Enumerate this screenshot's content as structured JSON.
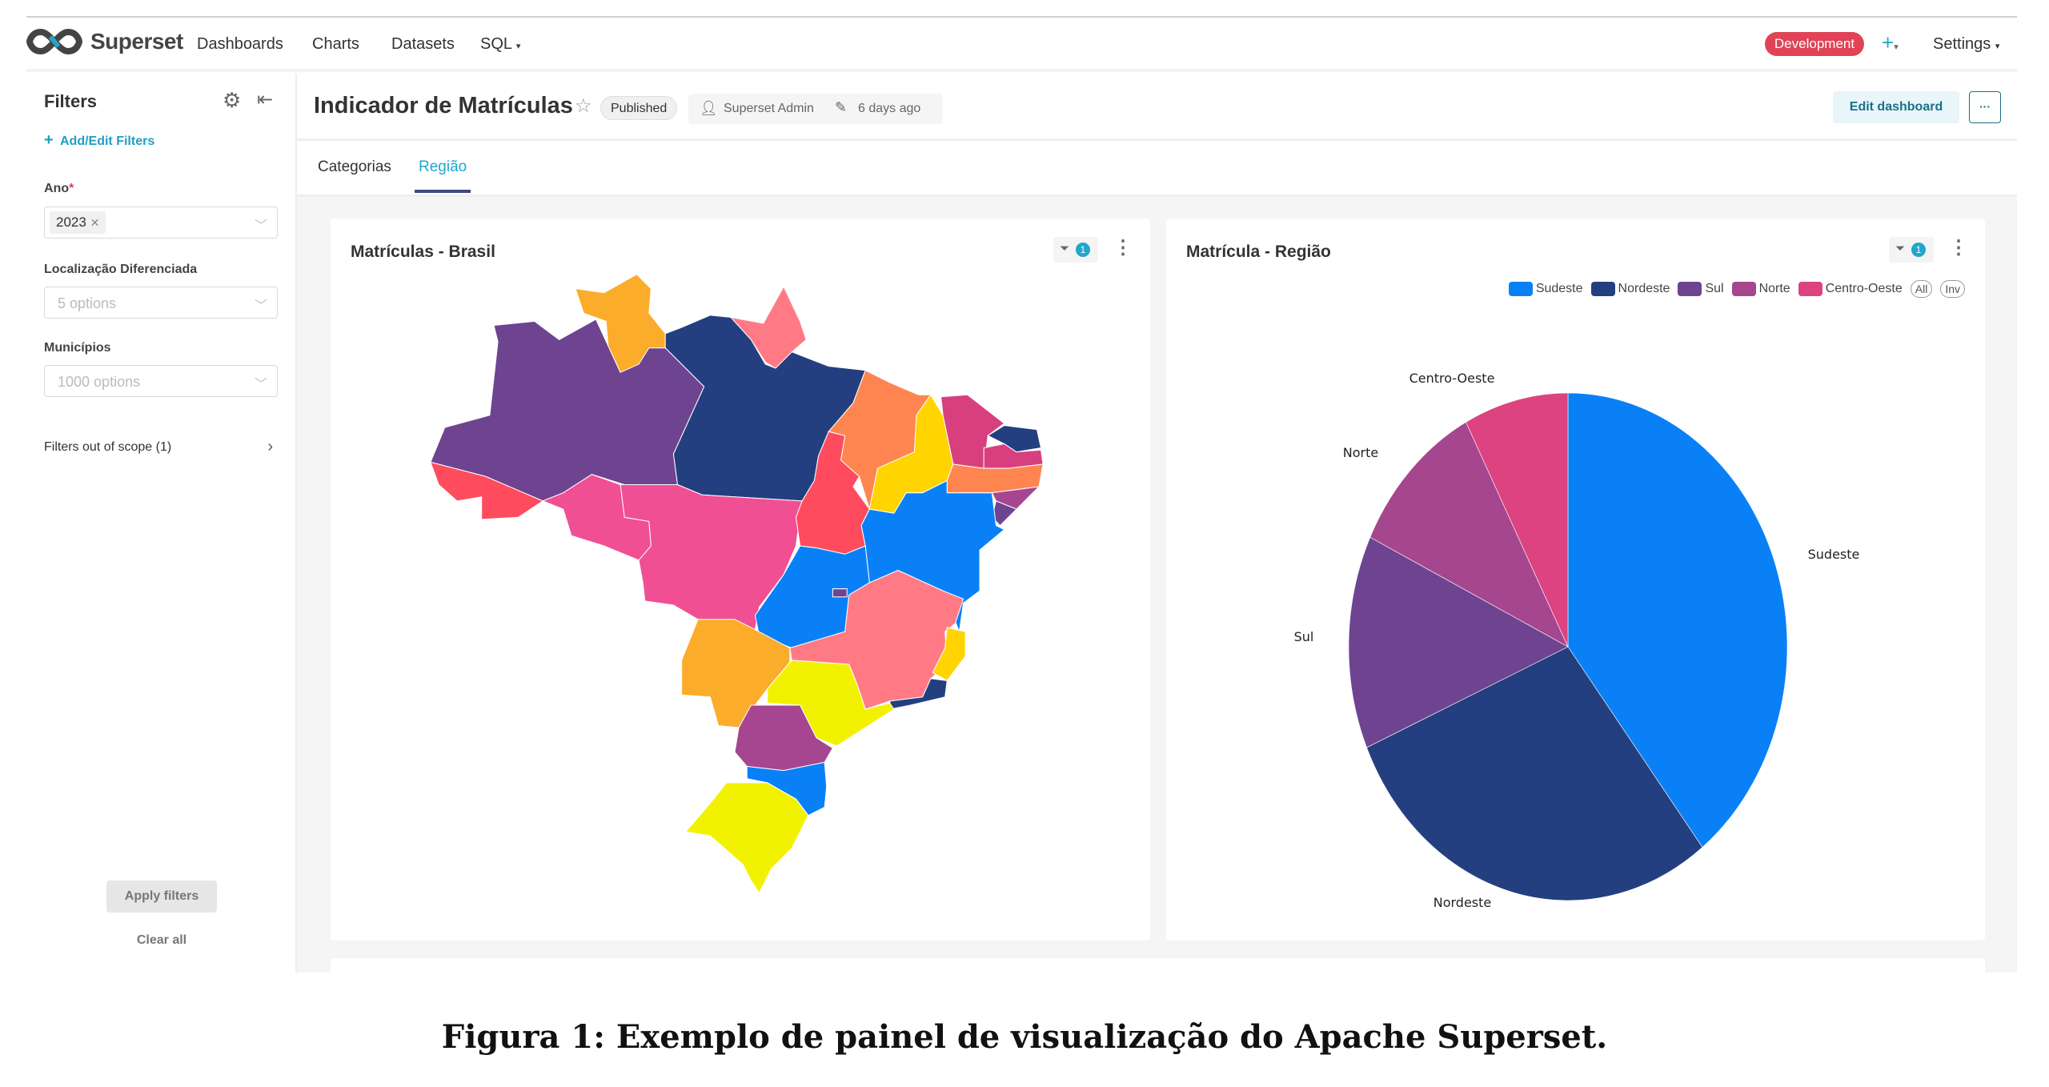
{
  "navbar": {
    "brand": "Superset",
    "links": [
      "Dashboards",
      "Charts",
      "Datasets",
      "SQL"
    ],
    "environment": "Development",
    "settings": "Settings"
  },
  "sidebar": {
    "title": "Filters",
    "add_edit": "Add/Edit Filters",
    "filters": [
      {
        "label": "Ano",
        "required": "*",
        "value": "2023"
      },
      {
        "label": "Localização Diferenciada",
        "placeholder": "5 options"
      },
      {
        "label": "Municípios",
        "placeholder": "1000 options"
      }
    ],
    "out_of_scope": "Filters out of scope (1)",
    "apply": "Apply filters",
    "clear": "Clear all"
  },
  "header": {
    "title": "Indicador de Matrículas",
    "status": "Published",
    "owner": "Superset Admin",
    "modified": "6 days ago",
    "edit": "Edit dashboard",
    "more": "···"
  },
  "tabs": [
    {
      "label": "Categorias",
      "active": false
    },
    {
      "label": "Região",
      "active": true
    }
  ],
  "cards": [
    {
      "title": "Matrículas - Brasil",
      "filter_count": "1"
    },
    {
      "title": "Matrícula - Região",
      "filter_count": "1"
    }
  ],
  "chart_data": {
    "type": "pie",
    "title": "Matrícula - Região",
    "categories": [
      "Sudeste",
      "Nordeste",
      "Sul",
      "Norte",
      "Centro-Oeste"
    ],
    "values": [
      39.5,
      29.0,
      13.6,
      10.2,
      7.7
    ],
    "unit": "percent share (estimated)",
    "colors": [
      "#0a80f7",
      "#243f7f",
      "#6e4490",
      "#a6468f",
      "#dc4380"
    ],
    "legend": {
      "placement": "top-right",
      "buttons": [
        "All",
        "Inv"
      ]
    }
  },
  "map_colors": {
    "navy": "#243f80",
    "purple": "#6e4490",
    "orange": "#fbac2a",
    "salmon": "#ff7a85",
    "red": "#ff4b5e",
    "pink": "#f04f93",
    "coral": "#ff8550",
    "gold": "#ffd400",
    "magenta": "#d83f7f",
    "plum": "#a64690",
    "blue": "#0a80f7",
    "yellow": "#f2f200"
  },
  "caption": "Figura 1: Exemplo de painel de visualização do Apache Superset."
}
